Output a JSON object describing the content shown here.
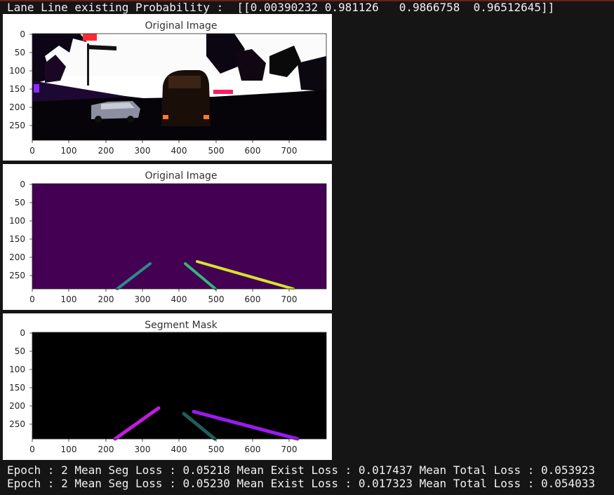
{
  "header": {
    "probability_line": "Lane Line existing Probability :  [[0.00390232 0.981126   0.9866758  0.96512645]]"
  },
  "plots": [
    {
      "title": "Original Image",
      "x_ticks": [
        "0",
        "100",
        "200",
        "300",
        "400",
        "500",
        "600",
        "700"
      ],
      "y_ticks": [
        "0",
        "50",
        "100",
        "150",
        "200",
        "250"
      ]
    },
    {
      "title": "Original Image",
      "x_ticks": [
        "0",
        "100",
        "200",
        "300",
        "400",
        "500",
        "600",
        "700"
      ],
      "y_ticks": [
        "0",
        "50",
        "100",
        "150",
        "200",
        "250"
      ]
    },
    {
      "title": "Segment Mask",
      "x_ticks": [
        "0",
        "100",
        "200",
        "300",
        "400",
        "500",
        "600",
        "700"
      ],
      "y_ticks": [
        "0",
        "50",
        "100",
        "150",
        "200",
        "250"
      ]
    }
  ],
  "log": {
    "line1": "Epoch : 2 Mean Seg Loss : 0.05218 Mean Exist Loss : 0.017437 Mean Total Loss : 0.053923",
    "line2": "Epoch : 2 Mean Seg Loss : 0.05230 Mean Exist Loss : 0.017323 Mean Total Loss : 0.054033"
  },
  "colors": {
    "background": "#151515",
    "label_purple": "#440154",
    "lane_teal": "#2a8c8a",
    "lane_green": "#35b779",
    "lane_yellow": "#d4e52a",
    "mask_magenta": "#c21bde",
    "mask_violet": "#9a1af0",
    "mask_teal": "#1f5e5b"
  }
}
